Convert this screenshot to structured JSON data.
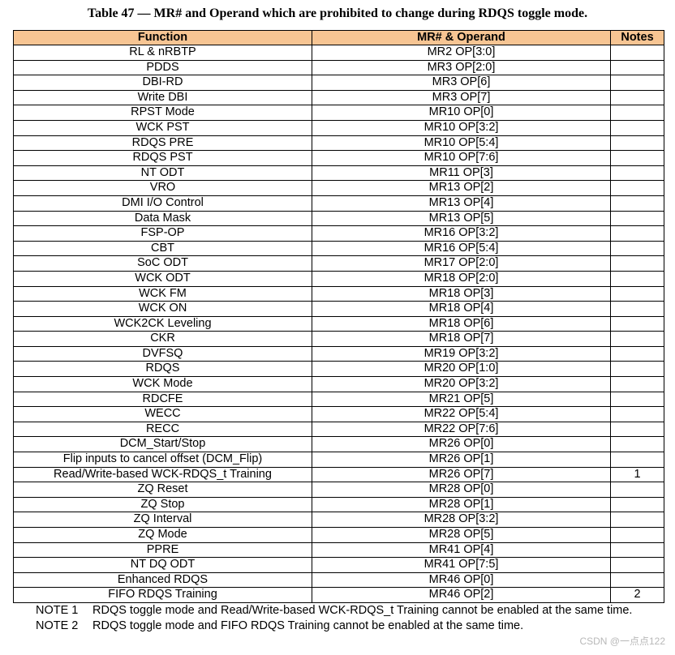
{
  "caption": "Table 47 — MR# and Operand which are prohibited to change during RDQS toggle mode.",
  "headers": [
    "Function",
    "MR# & Operand",
    "Notes"
  ],
  "rows": [
    [
      "RL & nRBTP",
      "MR2 OP[3:0]",
      ""
    ],
    [
      "PDDS",
      "MR3 OP[2:0]",
      ""
    ],
    [
      "DBI-RD",
      "MR3 OP[6]",
      ""
    ],
    [
      "Write DBI",
      "MR3 OP[7]",
      ""
    ],
    [
      "RPST Mode",
      "MR10 OP[0]",
      ""
    ],
    [
      "WCK PST",
      "MR10 OP[3:2]",
      ""
    ],
    [
      "RDQS PRE",
      "MR10 OP[5:4]",
      ""
    ],
    [
      "RDQS PST",
      "MR10 OP[7:6]",
      ""
    ],
    [
      "NT ODT",
      "MR11 OP[3]",
      ""
    ],
    [
      "VRO",
      "MR13 OP[2]",
      ""
    ],
    [
      "DMI I/O Control",
      "MR13 OP[4]",
      ""
    ],
    [
      "Data Mask",
      "MR13 OP[5]",
      ""
    ],
    [
      "FSP-OP",
      "MR16 OP[3:2]",
      ""
    ],
    [
      "CBT",
      "MR16 OP[5:4]",
      ""
    ],
    [
      "SoC ODT",
      "MR17 OP[2:0]",
      ""
    ],
    [
      "WCK ODT",
      "MR18 OP[2:0]",
      ""
    ],
    [
      "WCK FM",
      "MR18 OP[3]",
      ""
    ],
    [
      "WCK ON",
      "MR18 OP[4]",
      ""
    ],
    [
      "WCK2CK Leveling",
      "MR18 OP[6]",
      ""
    ],
    [
      "CKR",
      "MR18 OP[7]",
      ""
    ],
    [
      "DVFSQ",
      "MR19 OP[3:2]",
      ""
    ],
    [
      "RDQS",
      "MR20 OP[1:0]",
      ""
    ],
    [
      "WCK Mode",
      "MR20 OP[3:2]",
      ""
    ],
    [
      "RDCFE",
      "MR21 OP[5]",
      ""
    ],
    [
      "WECC",
      "MR22 OP[5:4]",
      ""
    ],
    [
      "RECC",
      "MR22 OP[7:6]",
      ""
    ],
    [
      "DCM_Start/Stop",
      "MR26 OP[0]",
      ""
    ],
    [
      "Flip inputs to cancel offset (DCM_Flip)",
      "MR26 OP[1]",
      ""
    ],
    [
      "Read/Write-based WCK-RDQS_t Training",
      "MR26 OP[7]",
      "1"
    ],
    [
      "ZQ Reset",
      "MR28 OP[0]",
      ""
    ],
    [
      "ZQ Stop",
      "MR28 OP[1]",
      ""
    ],
    [
      "ZQ Interval",
      "MR28 OP[3:2]",
      ""
    ],
    [
      "ZQ Mode",
      "MR28 OP[5]",
      ""
    ],
    [
      "PPRE",
      "MR41 OP[4]",
      ""
    ],
    [
      "NT DQ ODT",
      "MR41 OP[7:5]",
      ""
    ],
    [
      "Enhanced RDQS",
      "MR46 OP[0]",
      ""
    ],
    [
      "FIFO RDQS Training",
      "MR46 OP[2]",
      "2"
    ]
  ],
  "notes": [
    {
      "label": "NOTE 1",
      "text": "RDQS toggle mode and Read/Write-based WCK-RDQS_t Training cannot be enabled at the same time."
    },
    {
      "label": "NOTE 2",
      "text": "RDQS toggle mode and FIFO RDQS Training cannot be enabled at the same time."
    }
  ],
  "watermark": "CSDN @一点点122",
  "colors": {
    "header_bg": "#f7c593",
    "border": "#000000",
    "watermark": "#b8b8b8"
  }
}
